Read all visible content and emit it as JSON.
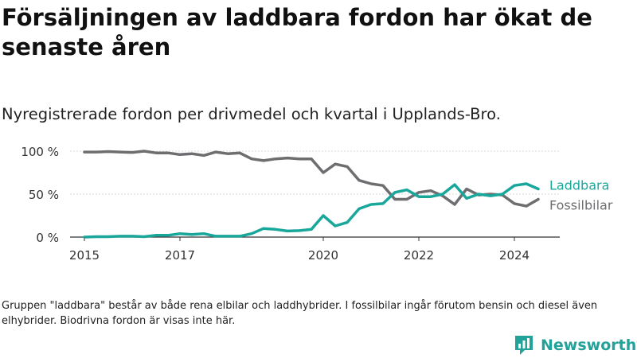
{
  "title": "Försäljningen av laddbara fordon har ökat de senaste åren",
  "subtitle": "Nyregistrerade fordon per drivmedel och kvartal i Upplands-Bro.",
  "footnote": "Gruppen \"laddbara\" består av både rena elbilar och laddhybrider. I fossilbilar ingår förutom bensin och diesel även elhybrider. Biodrivna fordon är visas inte här.",
  "brand": {
    "name": "Newsworthy",
    "icon": "newsworthy-logo-icon",
    "color": "#22a39a"
  },
  "chart_data": {
    "type": "line",
    "title": "Nyregistrerade fordon per drivmedel och kvartal i Upplands-Bro.",
    "xlabel": "",
    "ylabel": "",
    "x": [
      2015.0,
      2015.25,
      2015.5,
      2015.75,
      2016.0,
      2016.25,
      2016.5,
      2016.75,
      2017.0,
      2017.25,
      2017.5,
      2017.75,
      2018.0,
      2018.25,
      2018.5,
      2018.75,
      2019.0,
      2019.25,
      2019.5,
      2019.75,
      2020.0,
      2020.25,
      2020.5,
      2020.75,
      2021.0,
      2021.25,
      2021.5,
      2021.75,
      2022.0,
      2022.25,
      2022.5,
      2022.75,
      2023.0,
      2023.25,
      2023.5,
      2023.75,
      2024.0,
      2024.25,
      2024.5
    ],
    "xlim": [
      2014.7,
      2024.95
    ],
    "ylim": [
      0,
      100
    ],
    "x_ticks": [
      2015,
      2017,
      2020,
      2022,
      2024
    ],
    "x_tick_labels": [
      "2015",
      "2017",
      "2020",
      "2022",
      "2024"
    ],
    "y_ticks": [
      0,
      50,
      100
    ],
    "y_tick_labels": [
      "0 %",
      "50 %",
      "100 %"
    ],
    "series": [
      {
        "name": "Laddbara",
        "color": "#1aa79b",
        "values": [
          0,
          0.5,
          0.5,
          1,
          1,
          0.5,
          2,
          2,
          4,
          3,
          4,
          1,
          1,
          1,
          4,
          10,
          9,
          7,
          7.5,
          9,
          25,
          13,
          17,
          33,
          38,
          39,
          52,
          55,
          47,
          47,
          50,
          61,
          45,
          50,
          48,
          50,
          60,
          62,
          56
        ]
      },
      {
        "name": "Fossilbilar",
        "color": "#6e6d70",
        "values": [
          99,
          99,
          99.5,
          99,
          98.5,
          100,
          98,
          98,
          96,
          97,
          95,
          99,
          97,
          98,
          91,
          89,
          91,
          92,
          91,
          91,
          75,
          85,
          82,
          66,
          62,
          60,
          44,
          44,
          52,
          54,
          48,
          38,
          56,
          49,
          50,
          49,
          39,
          36,
          44
        ]
      }
    ],
    "legend": "right, at line ends"
  }
}
